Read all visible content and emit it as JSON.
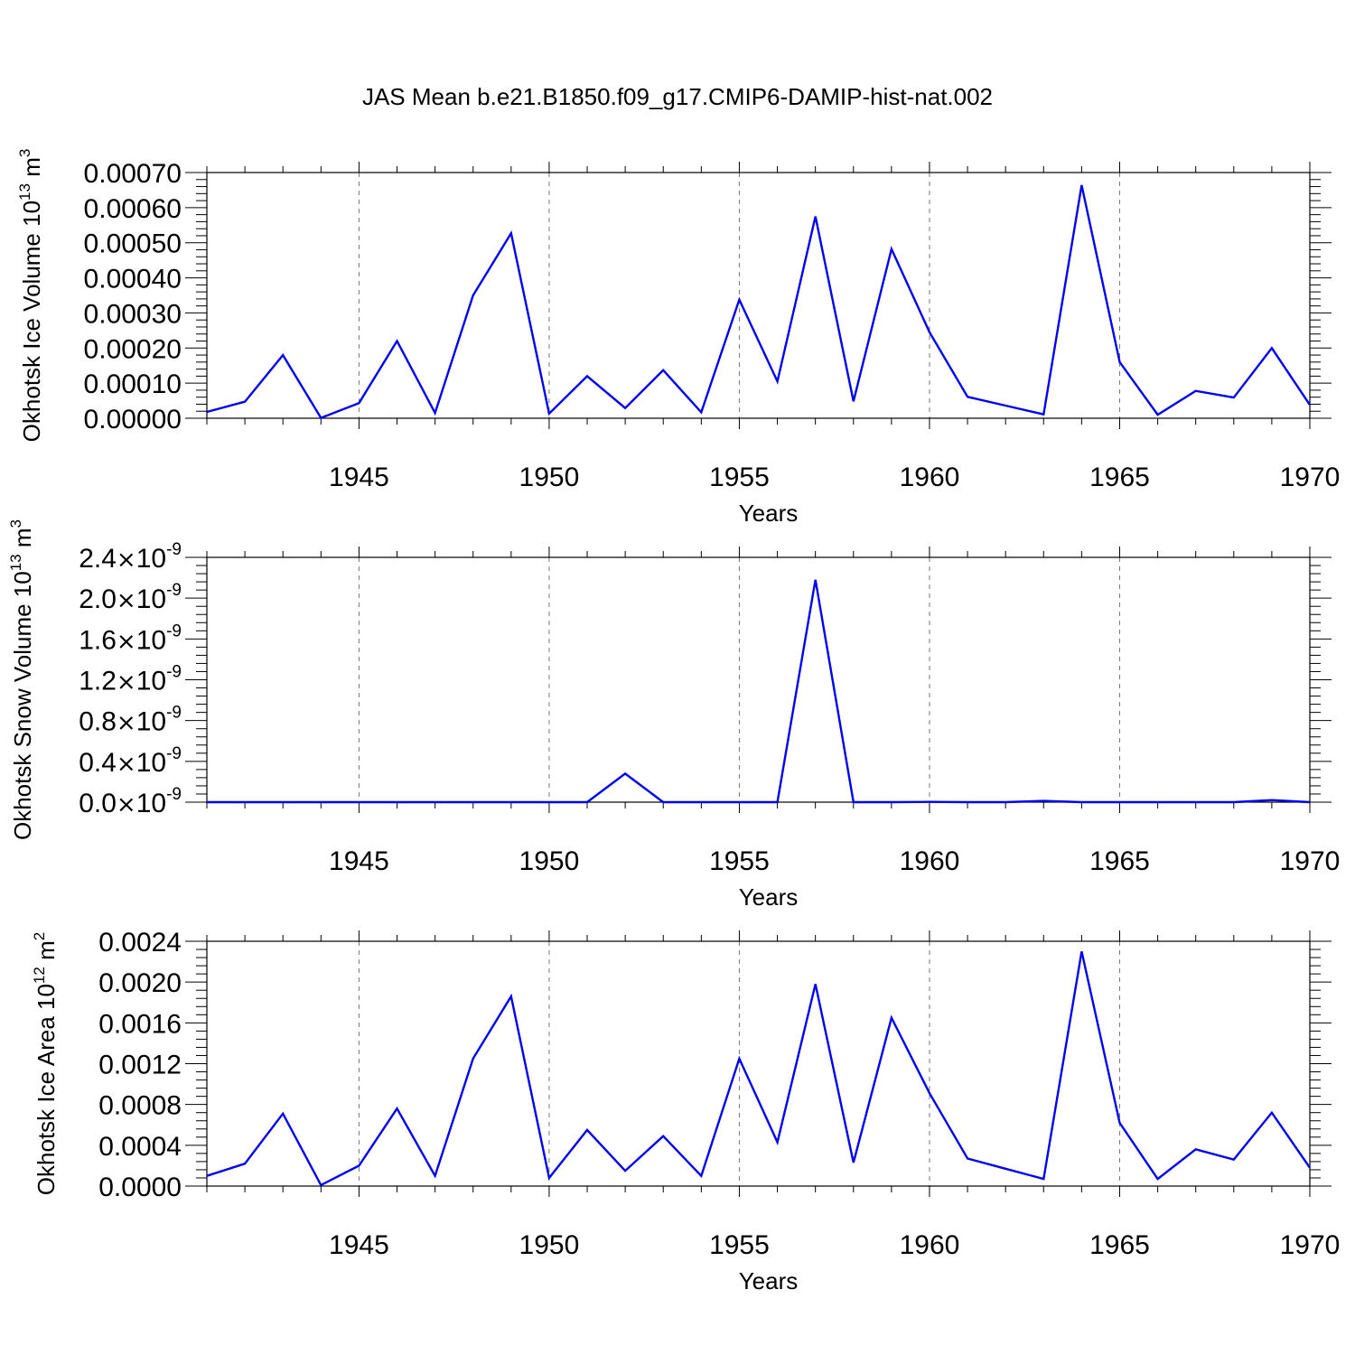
{
  "figure_title": "JAS Mean b.e21.B1850.f09_g17.CMIP6-DAMIP-hist-nat.002",
  "chart_data": [
    {
      "type": "line",
      "title": "",
      "xlabel": "Years",
      "ylabel": "Okhotsk Ice Volume 10",
      "ylabel_unit": "m",
      "ylabel_exp": "13",
      "ylabel_unit_exp": "3",
      "x": [
        1941,
        1942,
        1943,
        1944,
        1945,
        1946,
        1947,
        1948,
        1949,
        1950,
        1951,
        1952,
        1953,
        1954,
        1955,
        1956,
        1957,
        1958,
        1959,
        1960,
        1961,
        1962,
        1963,
        1964,
        1965,
        1966,
        1967,
        1968,
        1969,
        1970
      ],
      "series": [
        {
          "name": "Okhotsk Ice Volume",
          "color": "#0000ee",
          "values": [
            1.8e-05,
            4.7e-05,
            0.00018,
            1e-06,
            4.3e-05,
            0.00022,
            1.5e-05,
            0.00035,
            0.000527,
            1.3e-05,
            0.00012,
            2.9e-05,
            0.000137,
            1.7e-05,
            0.000338,
            0.000105,
            0.000575,
            4.8e-05,
            0.000482,
            0.000245,
            6.1e-05,
            3.6e-05,
            1.1e-05,
            0.000664,
            0.00016,
            1e-05,
            7.8e-05,
            5.9e-05,
            0.0002,
            3.8e-05
          ]
        }
      ],
      "xlim": [
        1941,
        1970
      ],
      "ylim": [
        0,
        0.0007
      ],
      "xticks": [
        1945,
        1950,
        1955,
        1960,
        1965,
        1970
      ],
      "xtick_labels": [
        "1945",
        "1950",
        "1955",
        "1960",
        "1965",
        "1970"
      ],
      "yticks": [
        0,
        0.0001,
        0.0002,
        0.0003,
        0.0004,
        0.0005,
        0.0006,
        0.0007
      ],
      "ytick_labels": [
        "0.00000",
        "0.00010",
        "0.00020",
        "0.00030",
        "0.00040",
        "0.00050",
        "0.00060",
        "0.00070"
      ],
      "ytick_exp": [],
      "grid": "vertical dashed at major x ticks"
    },
    {
      "type": "line",
      "title": "",
      "xlabel": "Years",
      "ylabel": "Okhotsk Snow Volume 10",
      "ylabel_unit": "m",
      "ylabel_exp": "13",
      "ylabel_unit_exp": "3",
      "x": [
        1941,
        1942,
        1943,
        1944,
        1945,
        1946,
        1947,
        1948,
        1949,
        1950,
        1951,
        1952,
        1953,
        1954,
        1955,
        1956,
        1957,
        1958,
        1959,
        1960,
        1961,
        1962,
        1963,
        1964,
        1965,
        1966,
        1967,
        1968,
        1969,
        1970
      ],
      "series": [
        {
          "name": "Okhotsk Snow Volume",
          "color": "#0000ee",
          "values": [
            0,
            0,
            0,
            0,
            0,
            0,
            0,
            0,
            0,
            0,
            0,
            2.8e-10,
            0,
            0,
            0,
            0,
            2.18e-09,
            0,
            0,
            3e-12,
            0,
            0,
            1.2e-11,
            0,
            0,
            0,
            0,
            0,
            2e-11,
            0
          ]
        }
      ],
      "xlim": [
        1941,
        1970
      ],
      "ylim": [
        0,
        2.4e-09
      ],
      "xticks": [
        1945,
        1950,
        1955,
        1960,
        1965,
        1970
      ],
      "xtick_labels": [
        "1945",
        "1950",
        "1955",
        "1960",
        "1965",
        "1970"
      ],
      "yticks": [
        0,
        4e-10,
        8e-10,
        1.2e-09,
        1.6e-09,
        2e-09,
        2.4e-09
      ],
      "ytick_labels": [
        "0.0×10",
        "0.4×10",
        "0.8×10",
        "1.2×10",
        "1.6×10",
        "2.0×10",
        "2.4×10"
      ],
      "ytick_exp": [
        "-9",
        "-9",
        "-9",
        "-9",
        "-9",
        "-9",
        "-9"
      ],
      "grid": "vertical dashed at major x ticks"
    },
    {
      "type": "line",
      "title": "",
      "xlabel": "Years",
      "ylabel": "Okhotsk Ice Area 10",
      "ylabel_unit": "m",
      "ylabel_exp": "12",
      "ylabel_unit_exp": "2",
      "x": [
        1941,
        1942,
        1943,
        1944,
        1945,
        1946,
        1947,
        1948,
        1949,
        1950,
        1951,
        1952,
        1953,
        1954,
        1955,
        1956,
        1957,
        1958,
        1959,
        1960,
        1961,
        1962,
        1963,
        1964,
        1965,
        1966,
        1967,
        1968,
        1969,
        1970
      ],
      "series": [
        {
          "name": "Okhotsk Ice Area",
          "color": "#0000ee",
          "values": [
            0.0001,
            0.00022,
            0.00071,
            1e-05,
            0.0002,
            0.00076,
            0.0001,
            0.00125,
            0.00186,
            8e-05,
            0.00055,
            0.00015,
            0.00049,
            0.0001,
            0.00125,
            0.00043,
            0.00198,
            0.00023,
            0.00165,
            0.00091,
            0.00027,
            0.00017,
            7e-05,
            0.0023,
            0.00062,
            7e-05,
            0.00036,
            0.00026,
            0.00072,
            0.00018
          ]
        }
      ],
      "xlim": [
        1941,
        1970
      ],
      "ylim": [
        0,
        0.0024
      ],
      "xticks": [
        1945,
        1950,
        1955,
        1960,
        1965,
        1970
      ],
      "xtick_labels": [
        "1945",
        "1950",
        "1955",
        "1960",
        "1965",
        "1970"
      ],
      "yticks": [
        0,
        0.0004,
        0.0008,
        0.0012,
        0.0016,
        0.002,
        0.0024
      ],
      "ytick_labels": [
        "0.0000",
        "0.0004",
        "0.0008",
        "0.0012",
        "0.0016",
        "0.0020",
        "0.0024"
      ],
      "ytick_exp": [],
      "grid": "vertical dashed at major x ticks"
    }
  ]
}
